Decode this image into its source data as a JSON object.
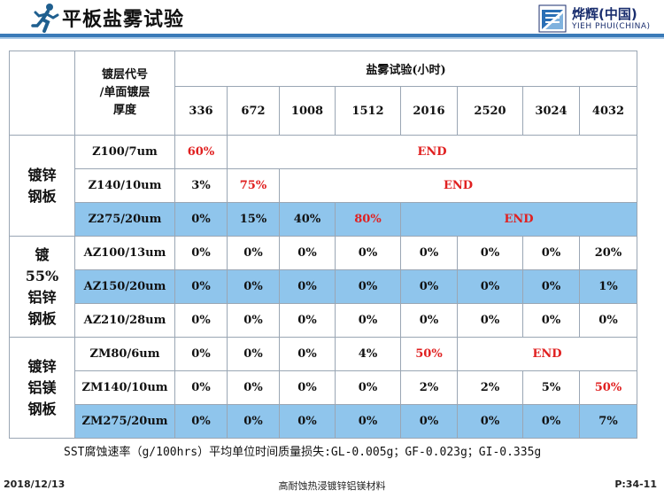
{
  "header": {
    "title": "平板盐雾试验",
    "logo_cn": "烨辉(中国)",
    "logo_en": "YIEH PHUI(CHINA)",
    "brand_color": "#3a7ab8"
  },
  "table": {
    "corner_label": [
      "镀层代号",
      "/单面镀层",
      "厚度"
    ],
    "test_title": "盐雾试验(小时)",
    "hours": [
      "336",
      "672",
      "1008",
      "1512",
      "2016",
      "2520",
      "3024",
      "4032"
    ],
    "groups": [
      {
        "label_lines": [
          "镀锌",
          "钢板"
        ],
        "rows": [
          {
            "code": "Z100/7um",
            "cells": [
              "60%"
            ],
            "end": "END"
          },
          {
            "code": "Z140/10um",
            "cells": [
              "3%",
              "75%"
            ],
            "end": "END"
          },
          {
            "code": "Z275/20um",
            "cells": [
              "0%",
              "15%",
              "40%",
              "80%"
            ],
            "end": "END"
          }
        ]
      },
      {
        "label_lines": [
          "镀",
          "55%",
          "铝锌",
          "钢板"
        ],
        "rows": [
          {
            "code": "AZ100/13um",
            "cells": [
              "0%",
              "0%",
              "0%",
              "0%",
              "0%",
              "0%",
              "0%",
              "20%"
            ]
          },
          {
            "code": "AZ150/20um",
            "cells": [
              "0%",
              "0%",
              "0%",
              "0%",
              "0%",
              "0%",
              "0%",
              "1%"
            ]
          },
          {
            "code": "AZ210/28um",
            "cells": [
              "0%",
              "0%",
              "0%",
              "0%",
              "0%",
              "0%",
              "0%",
              "0%"
            ]
          }
        ]
      },
      {
        "label_lines": [
          "镀锌",
          "铝镁",
          "钢板"
        ],
        "rows": [
          {
            "code": "ZM80/6um",
            "cells": [
              "0%",
              "0%",
              "0%",
              "4%",
              "50%"
            ],
            "end": "END"
          },
          {
            "code": "ZM140/10um",
            "cells": [
              "0%",
              "0%",
              "0%",
              "0%",
              "2%",
              "2%",
              "5%",
              "50%"
            ]
          },
          {
            "code": "ZM275/20um",
            "cells": [
              "0%",
              "0%",
              "0%",
              "0%",
              "0%",
              "0%",
              "0%",
              "7%"
            ]
          }
        ]
      }
    ]
  },
  "footnote": "SST腐蚀速率（g/100hrs）平均单位时间质量损失:GL-0.005g；GF-0.023g；GI-0.335g",
  "footer": {
    "date": "2018/12/13",
    "subtitle": "高耐蚀热浸镀锌铝镁材料",
    "page": "P:34-11"
  }
}
